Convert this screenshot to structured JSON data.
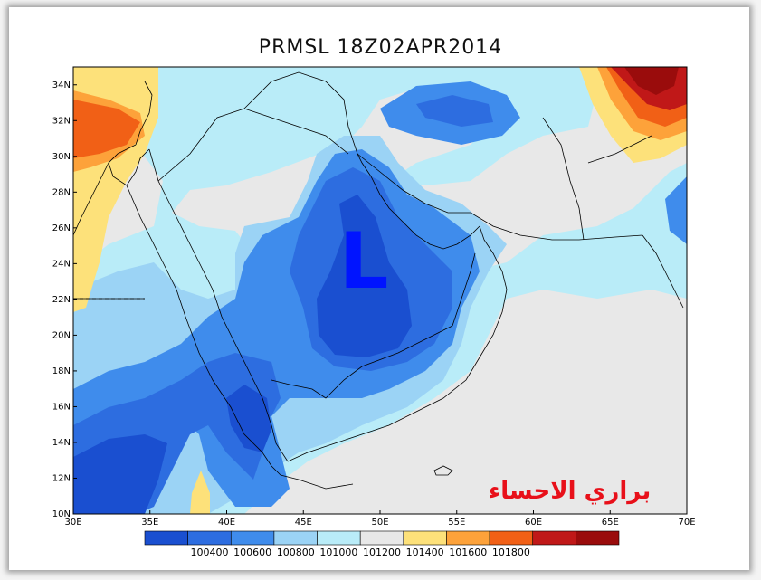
{
  "title": "PRMSL  18Z02APR2014",
  "low_marker": "L",
  "watermark": "براري الاحساء",
  "colors": {
    "pressure_100200": "#1a4fd0",
    "pressure_100400": "#2d6de0",
    "pressure_100600": "#3f8cec",
    "pressure_100800": "#9bd3f5",
    "pressure_101000": "#b9ecf8",
    "pressure_101200": "#e8e8e8",
    "pressure_101400": "#fde17a",
    "pressure_101600": "#fda23a",
    "pressure_101800": "#f16016",
    "pressure_max": "#c01818",
    "low_marker": "#0014ff",
    "watermark": "#e8101a"
  },
  "map": {
    "lon_range": [
      30,
      70
    ],
    "lat_range": [
      10,
      35
    ],
    "lon_ticks": [
      "30E",
      "35E",
      "40E",
      "45E",
      "50E",
      "55E",
      "60E",
      "65E",
      "70E"
    ],
    "lat_ticks": [
      "10N",
      "12N",
      "14N",
      "16N",
      "18N",
      "20N",
      "22N",
      "24N",
      "26N",
      "28N",
      "30N",
      "32N",
      "34N"
    ]
  },
  "colorbar": {
    "labels": [
      "100400",
      "100600",
      "100800",
      "101000",
      "101200",
      "101400",
      "101600",
      "101800"
    ],
    "colors": [
      "#1a4fd0",
      "#2d6de0",
      "#3f8cec",
      "#9bd3f5",
      "#b9ecf8",
      "#e8e8e8",
      "#fde17a",
      "#fda23a",
      "#f16016",
      "#c01818",
      "#9a0c0c"
    ]
  }
}
